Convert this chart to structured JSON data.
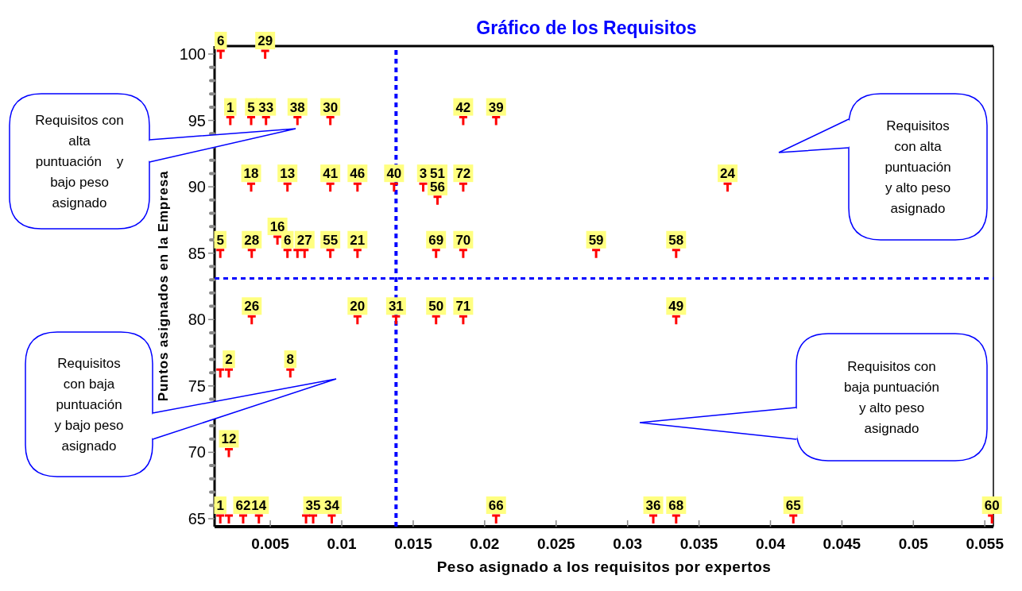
{
  "chart_data": {
    "type": "scatter",
    "title": "Gráfico de los Requisitos",
    "xlabel": "Peso asignado a los requisitos por expertos",
    "ylabel": "Puntos asignados en la Empresa",
    "x": [
      0.00153,
      0.00464,
      0.0022,
      0.00366,
      0.0047,
      0.0069,
      0.0092,
      0.0185,
      0.0208,
      0.00366,
      0.0062,
      0.0092,
      0.0111,
      0.01366,
      0.0157,
      0.0167,
      0.0185,
      0.0167,
      0.037,
      0.0015,
      0.0037,
      0.0055,
      0.0062,
      0.0069,
      0.0074,
      0.0092,
      0.0111,
      0.0166,
      0.0185,
      0.0278,
      0.0334,
      0.0037,
      0.0111,
      0.0138,
      0.0166,
      0.0185,
      0.0334,
      0.0015,
      0.0021,
      0.0064,
      0.0021,
      0.0015,
      0.0021,
      0.0031,
      0.0042,
      0.0075,
      0.008,
      0.0093,
      0.0208,
      0.0318,
      0.0334,
      0.0416,
      0.0555
    ],
    "series": [
      {
        "color": "#ff0000",
        "values": [
          100,
          100,
          95,
          95,
          95,
          95,
          95,
          95,
          95,
          90,
          90,
          90,
          90,
          90,
          90,
          null,
          90,
          89,
          90,
          85,
          85,
          86,
          85,
          85,
          85,
          85,
          85,
          85,
          85,
          85,
          85,
          80,
          80,
          80,
          80,
          80,
          80,
          76,
          76,
          76,
          70,
          65,
          65,
          65,
          65,
          65,
          65,
          65,
          65,
          65,
          65,
          65,
          65
        ]
      }
    ],
    "xlim": [
      0.0011,
      0.0556
    ],
    "xticks": [
      0.005,
      0.01,
      0.015,
      0.02,
      0.025,
      0.03,
      0.035,
      0.04,
      0.045,
      0.05,
      0.055
    ],
    "ylim": [
      64.4,
      100.6
    ],
    "yticks": [
      {
        "value": 65,
        "label": "65"
      },
      {
        "value": 66,
        "label": null
      },
      {
        "value": 67,
        "label": null
      },
      {
        "value": 68,
        "label": null
      },
      {
        "value": 69,
        "label": null
      },
      {
        "value": 70,
        "label": "70"
      },
      {
        "value": 71,
        "label": null
      },
      {
        "value": 72,
        "label": null
      },
      {
        "value": 73,
        "label": null
      },
      {
        "value": 74,
        "label": null
      },
      {
        "value": 75,
        "label": "75"
      },
      {
        "value": 76,
        "label": null
      },
      {
        "value": 77,
        "label": null
      },
      {
        "value": 78,
        "label": null
      },
      {
        "value": 79,
        "label": null
      },
      {
        "value": 80,
        "label": "80"
      },
      {
        "value": 81,
        "label": null
      },
      {
        "value": 82,
        "label": null
      },
      {
        "value": 83,
        "label": null
      },
      {
        "value": 84,
        "label": null
      },
      {
        "value": 85,
        "label": "85"
      },
      {
        "value": 86,
        "label": null
      },
      {
        "value": 87,
        "label": null
      },
      {
        "value": 88,
        "label": null
      },
      {
        "value": 89,
        "label": null
      },
      {
        "value": 90,
        "label": "90"
      },
      {
        "value": 91,
        "label": null
      },
      {
        "value": 92,
        "label": null
      },
      {
        "value": 93,
        "label": null
      },
      {
        "value": 94,
        "label": null
      },
      {
        "value": 95,
        "label": "95"
      },
      {
        "value": 96,
        "label": null
      },
      {
        "value": 97,
        "label": null
      },
      {
        "value": 98,
        "label": null
      },
      {
        "value": 99,
        "label": null
      },
      {
        "value": 100,
        "label": "100"
      }
    ],
    "ref_lines": [
      {
        "axis": "x",
        "value": 0.0138,
        "color": "#0000ff",
        "line_style": "dashed"
      },
      {
        "axis": "y",
        "value": 83.1,
        "color": "#0000ff",
        "line_style": "dashed"
      }
    ],
    "annotations": [
      "Requisitos con\nalta\npuntuación    y\nbajo peso\nasignado",
      "Requisitos\ncon alta\npuntuación\ny alto peso\nasignado",
      "Requisitos\ncon baja\npuntuación\ny bajo peso\nasignado",
      "Requisitos con\nbaja puntuación\ny alto peso\nasignado",
      {
        "text": "6",
        "x": 0.00153,
        "y": 100
      },
      {
        "text": "29",
        "x": 0.00464,
        "y": 100
      },
      {
        "text": "1",
        "x": 0.0022,
        "y": 95
      },
      {
        "text": "5",
        "x": 0.00366,
        "y": 95
      },
      {
        "text": "33",
        "x": 0.0047,
        "y": 95
      },
      {
        "text": "38",
        "x": 0.0069,
        "y": 95
      },
      {
        "text": "30",
        "x": 0.0092,
        "y": 95
      },
      {
        "text": "42",
        "x": 0.0185,
        "y": 95
      },
      {
        "text": "39",
        "x": 0.0208,
        "y": 95
      },
      {
        "text": "18",
        "x": 0.00366,
        "y": 90
      },
      {
        "text": "13",
        "x": 0.0062,
        "y": 90
      },
      {
        "text": "41",
        "x": 0.0092,
        "y": 90
      },
      {
        "text": "46",
        "x": 0.0111,
        "y": 90
      },
      {
        "text": "40",
        "x": 0.01366,
        "y": 90
      },
      {
        "text": "3",
        "x": 0.0157,
        "y": 90
      },
      {
        "text": "51",
        "x": 0.0167,
        "y": 90
      },
      {
        "text": "72",
        "x": 0.0185,
        "y": 90
      },
      {
        "text": "56",
        "x": 0.0167,
        "y": 89
      },
      {
        "text": "24",
        "x": 0.037,
        "y": 90
      },
      {
        "text": "5",
        "x": 0.0015,
        "y": 85
      },
      {
        "text": "28",
        "x": 0.0037,
        "y": 85
      },
      {
        "text": "16",
        "x": 0.0055,
        "y": 86
      },
      {
        "text": "6",
        "x": 0.0062,
        "y": 85
      },
      {
        "text": "27",
        "x": 0.0074,
        "y": 85
      },
      {
        "text": "55",
        "x": 0.0092,
        "y": 85
      },
      {
        "text": "21",
        "x": 0.0111,
        "y": 85
      },
      {
        "text": "69",
        "x": 0.0166,
        "y": 85
      },
      {
        "text": "70",
        "x": 0.0185,
        "y": 85
      },
      {
        "text": "59",
        "x": 0.0278,
        "y": 85
      },
      {
        "text": "58",
        "x": 0.0334,
        "y": 85
      },
      {
        "text": "26",
        "x": 0.0037,
        "y": 80
      },
      {
        "text": "20",
        "x": 0.0111,
        "y": 80
      },
      {
        "text": "31",
        "x": 0.0138,
        "y": 80
      },
      {
        "text": "50",
        "x": 0.0166,
        "y": 80
      },
      {
        "text": "71",
        "x": 0.0185,
        "y": 80
      },
      {
        "text": "49",
        "x": 0.0334,
        "y": 80
      },
      {
        "text": "2",
        "x": 0.0021,
        "y": 76
      },
      {
        "text": "8",
        "x": 0.0064,
        "y": 76
      },
      {
        "text": "12",
        "x": 0.0021,
        "y": 70
      },
      {
        "text": "1",
        "x": 0.0015,
        "y": 65
      },
      {
        "text": "62",
        "x": 0.0031,
        "y": 65
      },
      {
        "text": "14",
        "x": 0.0042,
        "y": 65
      },
      {
        "text": "35",
        "x": 0.008,
        "y": 65
      },
      {
        "text": "34",
        "x": 0.0093,
        "y": 65
      },
      {
        "text": "66",
        "x": 0.0208,
        "y": 65
      },
      {
        "text": "36",
        "x": 0.0318,
        "y": 65
      },
      {
        "text": "68",
        "x": 0.0334,
        "y": 65
      },
      {
        "text": "65",
        "x": 0.0416,
        "y": 65
      },
      {
        "text": "60",
        "x": 0.0555,
        "y": 65
      }
    ]
  }
}
